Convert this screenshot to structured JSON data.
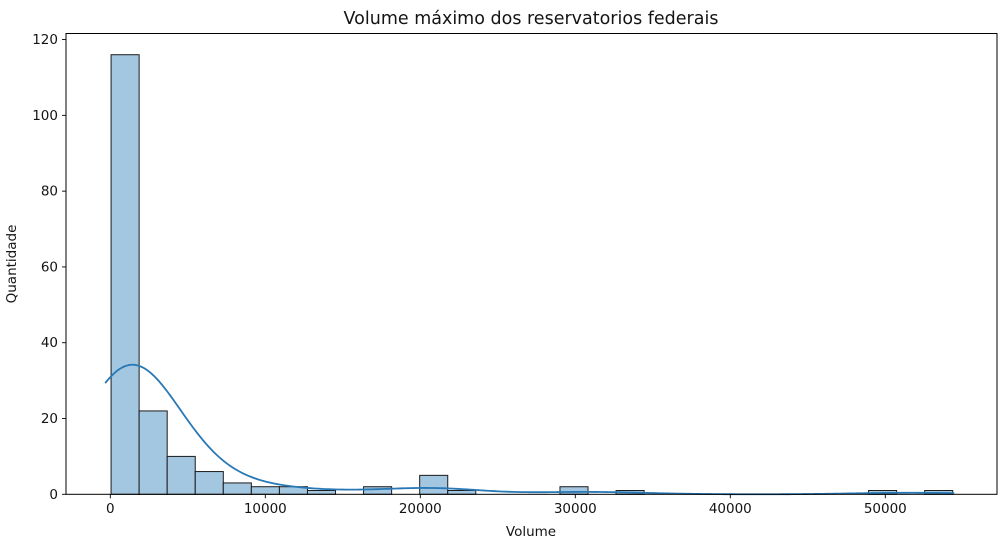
{
  "chart_data": {
    "type": "histogram",
    "title": "Volume máximo dos reservatorios federais",
    "xlabel": "Volume",
    "ylabel": "Quantidade",
    "bin_start": 50,
    "bin_width": 1810,
    "counts": [
      116,
      22,
      10,
      6,
      3,
      2,
      2,
      1,
      0,
      2,
      0,
      5,
      1,
      0,
      0,
      0,
      2,
      0,
      1,
      0,
      0,
      0,
      0,
      0,
      0,
      0,
      0,
      1,
      0,
      1
    ],
    "total_count": 175,
    "xticks": [
      0,
      10000,
      20000,
      30000,
      40000,
      50000
    ],
    "yticks": [
      0,
      20,
      40,
      60,
      80,
      100,
      120
    ],
    "xlim": [
      -2858,
      57206
    ],
    "ylim": [
      0,
      121.6
    ],
    "grid": false,
    "legend": null,
    "kde": {
      "enabled": true,
      "bandwidth": 3000,
      "x_min": -300,
      "x_max": 54400,
      "peak_value": 35,
      "color": "#2878b5"
    },
    "bar_fill": "#a3c7e0",
    "bar_edge": "#1a1a1a",
    "spine_color": "#000000",
    "tick_color": "#000000",
    "background": "#ffffff"
  }
}
